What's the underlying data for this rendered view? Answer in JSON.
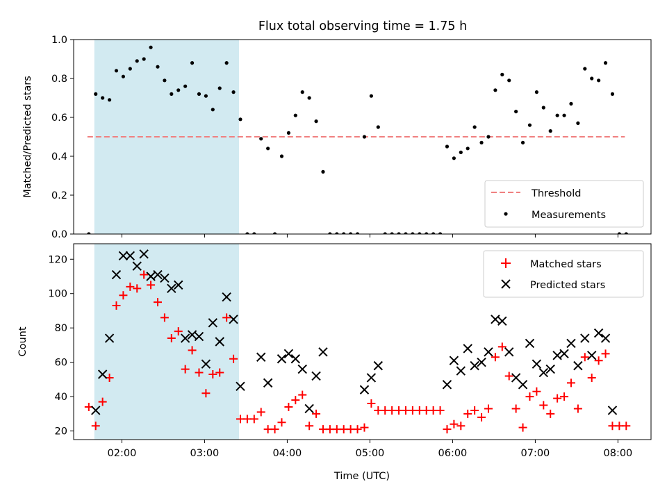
{
  "figure": {
    "title": "Flux total observing time = 1.75 h"
  },
  "chart_data": [
    {
      "type": "scatter",
      "title": "Flux total observing time = 1.75 h",
      "xlabel": "",
      "ylabel": "Matched/Predicted stars",
      "xlim": [
        "01:25",
        "08:24"
      ],
      "ylim": [
        0,
        1
      ],
      "yticks": [
        "0.0",
        "0.2",
        "0.4",
        "0.6",
        "0.8",
        "1.0"
      ],
      "shaded_span": {
        "start": "01:40",
        "end": "03:25",
        "color": "#add8e6"
      },
      "threshold": {
        "name": "Threshold",
        "value": 0.5,
        "start": "01:35",
        "end": "08:05",
        "color": "#f08080"
      },
      "legend": {
        "placement": "lower-right",
        "entries": [
          "Threshold",
          "Measurements"
        ]
      },
      "series": [
        {
          "name": "Measurements",
          "color": "#000000",
          "marker": "dot",
          "points": [
            [
              "01:36",
              0.0
            ],
            [
              "01:41",
              0.72
            ],
            [
              "01:46",
              0.7
            ],
            [
              "01:51",
              0.69
            ],
            [
              "01:56",
              0.84
            ],
            [
              "02:01",
              0.81
            ],
            [
              "02:06",
              0.85
            ],
            [
              "02:11",
              0.89
            ],
            [
              "02:16",
              0.9
            ],
            [
              "02:21",
              0.96
            ],
            [
              "02:26",
              0.86
            ],
            [
              "02:31",
              0.79
            ],
            [
              "02:36",
              0.72
            ],
            [
              "02:41",
              0.74
            ],
            [
              "02:46",
              0.76
            ],
            [
              "02:51",
              0.88
            ],
            [
              "02:56",
              0.72
            ],
            [
              "03:01",
              0.71
            ],
            [
              "03:06",
              0.64
            ],
            [
              "03:11",
              0.75
            ],
            [
              "03:16",
              0.88
            ],
            [
              "03:21",
              0.73
            ],
            [
              "03:26",
              0.59
            ],
            [
              "03:31",
              0.0
            ],
            [
              "03:36",
              0.0
            ],
            [
              "03:41",
              0.49
            ],
            [
              "03:46",
              0.44
            ],
            [
              "03:51",
              0.0
            ],
            [
              "03:56",
              0.4
            ],
            [
              "04:01",
              0.52
            ],
            [
              "04:06",
              0.61
            ],
            [
              "04:11",
              0.73
            ],
            [
              "04:16",
              0.7
            ],
            [
              "04:21",
              0.58
            ],
            [
              "04:26",
              0.32
            ],
            [
              "04:31",
              0.0
            ],
            [
              "04:36",
              0.0
            ],
            [
              "04:41",
              0.0
            ],
            [
              "04:46",
              0.0
            ],
            [
              "04:51",
              0.0
            ],
            [
              "04:56",
              0.5
            ],
            [
              "05:01",
              0.71
            ],
            [
              "05:06",
              0.55
            ],
            [
              "05:11",
              0.0
            ],
            [
              "05:16",
              0.0
            ],
            [
              "05:21",
              0.0
            ],
            [
              "05:26",
              0.0
            ],
            [
              "05:31",
              0.0
            ],
            [
              "05:36",
              0.0
            ],
            [
              "05:41",
              0.0
            ],
            [
              "05:46",
              0.0
            ],
            [
              "05:51",
              0.0
            ],
            [
              "05:56",
              0.45
            ],
            [
              "06:01",
              0.39
            ],
            [
              "06:06",
              0.42
            ],
            [
              "06:11",
              0.44
            ],
            [
              "06:16",
              0.55
            ],
            [
              "06:21",
              0.47
            ],
            [
              "06:26",
              0.5
            ],
            [
              "06:31",
              0.74
            ],
            [
              "06:36",
              0.82
            ],
            [
              "06:41",
              0.79
            ],
            [
              "06:46",
              0.63
            ],
            [
              "06:51",
              0.47
            ],
            [
              "06:56",
              0.56
            ],
            [
              "07:01",
              0.73
            ],
            [
              "07:06",
              0.65
            ],
            [
              "07:11",
              0.53
            ],
            [
              "07:16",
              0.61
            ],
            [
              "07:21",
              0.61
            ],
            [
              "07:26",
              0.67
            ],
            [
              "07:31",
              0.57
            ],
            [
              "07:36",
              0.85
            ],
            [
              "07:41",
              0.8
            ],
            [
              "07:46",
              0.79
            ],
            [
              "07:51",
              0.88
            ],
            [
              "07:56",
              0.72
            ],
            [
              "08:01",
              0.0
            ],
            [
              "08:06",
              0.0
            ]
          ]
        }
      ]
    },
    {
      "type": "scatter",
      "title": "",
      "xlabel": "Time (UTC)",
      "ylabel": "Count",
      "xlim": [
        "01:25",
        "08:24"
      ],
      "ylim": [
        15,
        129
      ],
      "yticks": [
        "20",
        "40",
        "60",
        "80",
        "100",
        "120"
      ],
      "xticks": [
        "02:00",
        "03:00",
        "04:00",
        "05:00",
        "06:00",
        "07:00",
        "08:00"
      ],
      "shaded_span": {
        "start": "01:40",
        "end": "03:25",
        "color": "#add8e6"
      },
      "legend": {
        "placement": "top-right",
        "entries": [
          "Matched stars",
          "Predicted stars"
        ]
      },
      "series": [
        {
          "name": "Matched stars",
          "color": "#ff0000",
          "marker": "plus",
          "points": [
            [
              "01:36",
              34
            ],
            [
              "01:41",
              23
            ],
            [
              "01:46",
              37
            ],
            [
              "01:51",
              51
            ],
            [
              "01:56",
              93
            ],
            [
              "02:01",
              99
            ],
            [
              "02:06",
              104
            ],
            [
              "02:11",
              103
            ],
            [
              "02:16",
              111
            ],
            [
              "02:21",
              105
            ],
            [
              "02:26",
              95
            ],
            [
              "02:31",
              86
            ],
            [
              "02:36",
              74
            ],
            [
              "02:41",
              78
            ],
            [
              "02:46",
              56
            ],
            [
              "02:51",
              67
            ],
            [
              "02:56",
              54
            ],
            [
              "03:01",
              42
            ],
            [
              "03:06",
              53
            ],
            [
              "03:11",
              54
            ],
            [
              "03:16",
              86
            ],
            [
              "03:21",
              62
            ],
            [
              "03:26",
              27
            ],
            [
              "03:31",
              27
            ],
            [
              "03:36",
              27
            ],
            [
              "03:41",
              31
            ],
            [
              "03:46",
              21
            ],
            [
              "03:51",
              21
            ],
            [
              "03:56",
              25
            ],
            [
              "04:01",
              34
            ],
            [
              "04:06",
              38
            ],
            [
              "04:11",
              41
            ],
            [
              "04:16",
              23
            ],
            [
              "04:21",
              30
            ],
            [
              "04:26",
              21
            ],
            [
              "04:31",
              21
            ],
            [
              "04:36",
              21
            ],
            [
              "04:41",
              21
            ],
            [
              "04:46",
              21
            ],
            [
              "04:51",
              21
            ],
            [
              "04:56",
              22
            ],
            [
              "05:01",
              36
            ],
            [
              "05:06",
              32
            ],
            [
              "05:11",
              32
            ],
            [
              "05:16",
              32
            ],
            [
              "05:21",
              32
            ],
            [
              "05:26",
              32
            ],
            [
              "05:31",
              32
            ],
            [
              "05:36",
              32
            ],
            [
              "05:41",
              32
            ],
            [
              "05:46",
              32
            ],
            [
              "05:51",
              32
            ],
            [
              "05:56",
              21
            ],
            [
              "06:01",
              24
            ],
            [
              "06:06",
              23
            ],
            [
              "06:11",
              30
            ],
            [
              "06:16",
              32
            ],
            [
              "06:21",
              28
            ],
            [
              "06:26",
              33
            ],
            [
              "06:31",
              63
            ],
            [
              "06:36",
              69
            ],
            [
              "06:41",
              52
            ],
            [
              "06:46",
              33
            ],
            [
              "06:51",
              22
            ],
            [
              "06:56",
              40
            ],
            [
              "07:01",
              43
            ],
            [
              "07:06",
              35
            ],
            [
              "07:11",
              30
            ],
            [
              "07:16",
              39
            ],
            [
              "07:21",
              40
            ],
            [
              "07:26",
              48
            ],
            [
              "07:31",
              33
            ],
            [
              "07:36",
              63
            ],
            [
              "07:41",
              51
            ],
            [
              "07:46",
              61
            ],
            [
              "07:51",
              65
            ],
            [
              "07:56",
              23
            ],
            [
              "08:01",
              23
            ],
            [
              "08:06",
              23
            ]
          ]
        },
        {
          "name": "Predicted stars",
          "color": "#000000",
          "marker": "x",
          "points": [
            [
              "01:41",
              32
            ],
            [
              "01:46",
              53
            ],
            [
              "01:51",
              74
            ],
            [
              "01:56",
              111
            ],
            [
              "02:01",
              122
            ],
            [
              "02:06",
              122
            ],
            [
              "02:11",
              116
            ],
            [
              "02:16",
              123
            ],
            [
              "02:21",
              110
            ],
            [
              "02:26",
              111
            ],
            [
              "02:31",
              109
            ],
            [
              "02:36",
              103
            ],
            [
              "02:41",
              105
            ],
            [
              "02:46",
              74
            ],
            [
              "02:51",
              76
            ],
            [
              "02:56",
              75
            ],
            [
              "03:01",
              59
            ],
            [
              "03:06",
              83
            ],
            [
              "03:11",
              72
            ],
            [
              "03:16",
              98
            ],
            [
              "03:21",
              85
            ],
            [
              "03:26",
              46
            ],
            [
              "03:41",
              63
            ],
            [
              "03:46",
              48
            ],
            [
              "03:56",
              62
            ],
            [
              "04:01",
              65
            ],
            [
              "04:06",
              62
            ],
            [
              "04:11",
              56
            ],
            [
              "04:16",
              33
            ],
            [
              "04:21",
              52
            ],
            [
              "04:26",
              66
            ],
            [
              "04:56",
              44
            ],
            [
              "05:01",
              51
            ],
            [
              "05:06",
              58
            ],
            [
              "05:56",
              47
            ],
            [
              "06:01",
              61
            ],
            [
              "06:06",
              55
            ],
            [
              "06:11",
              68
            ],
            [
              "06:16",
              58
            ],
            [
              "06:21",
              60
            ],
            [
              "06:26",
              66
            ],
            [
              "06:31",
              85
            ],
            [
              "06:36",
              84
            ],
            [
              "06:41",
              66
            ],
            [
              "06:46",
              51
            ],
            [
              "06:51",
              47
            ],
            [
              "06:56",
              71
            ],
            [
              "07:01",
              59
            ],
            [
              "07:06",
              54
            ],
            [
              "07:11",
              56
            ],
            [
              "07:16",
              64
            ],
            [
              "07:21",
              65
            ],
            [
              "07:26",
              71
            ],
            [
              "07:31",
              58
            ],
            [
              "07:36",
              74
            ],
            [
              "07:41",
              64
            ],
            [
              "07:46",
              77
            ],
            [
              "07:51",
              74
            ],
            [
              "07:56",
              32
            ]
          ]
        }
      ]
    }
  ]
}
